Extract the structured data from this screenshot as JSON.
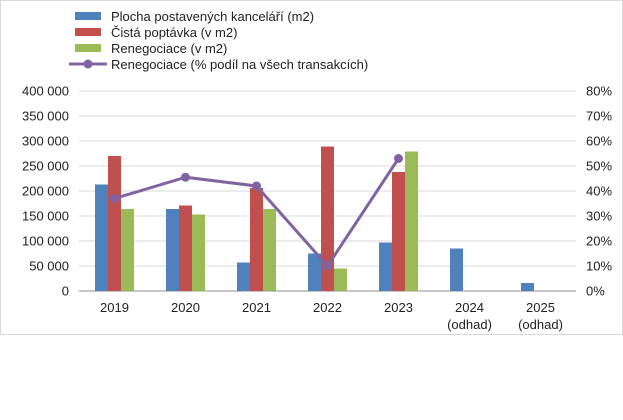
{
  "chart_data": {
    "type": "bar",
    "categories": [
      [
        "2019"
      ],
      [
        "2020"
      ],
      [
        "2021"
      ],
      [
        "2022"
      ],
      [
        "2023"
      ],
      [
        "2024",
        "(odhad)"
      ],
      [
        "2025",
        "(odhad)"
      ]
    ],
    "series": [
      {
        "name": "Plocha postavených kanceláří (m2)",
        "color": "#4f81bd",
        "kind": "bar",
        "axis": "left",
        "values": [
          213000,
          164000,
          57000,
          75000,
          97000,
          85000,
          16000
        ]
      },
      {
        "name": "Čistá poptávka (v m2)",
        "color": "#c0504d",
        "kind": "bar",
        "axis": "left",
        "values": [
          270000,
          171000,
          206000,
          289000,
          238000,
          null,
          null
        ]
      },
      {
        "name": "Renegociace (v m2)",
        "color": "#9bbb59",
        "kind": "bar",
        "axis": "left",
        "values": [
          164000,
          153000,
          164000,
          45000,
          279000,
          null,
          null
        ]
      },
      {
        "name": "Renegociace (% podíl na všech transakcích)",
        "color": "#8064a2",
        "kind": "line",
        "axis": "right",
        "values": [
          0.37,
          0.455,
          0.42,
          0.1,
          0.53,
          null,
          null
        ]
      }
    ],
    "left_axis": {
      "min": 0,
      "max": 400000,
      "ticks": [
        "0",
        "50 000",
        "100 000",
        "150 000",
        "200 000",
        "250 000",
        "300 000",
        "350 000",
        "400 000"
      ]
    },
    "right_axis": {
      "min": 0,
      "max": 0.8,
      "ticks": [
        "0%",
        "10%",
        "20%",
        "30%",
        "40%",
        "50%",
        "60%",
        "70%",
        "80%"
      ]
    },
    "grid": true,
    "legend_position": "top-left"
  }
}
